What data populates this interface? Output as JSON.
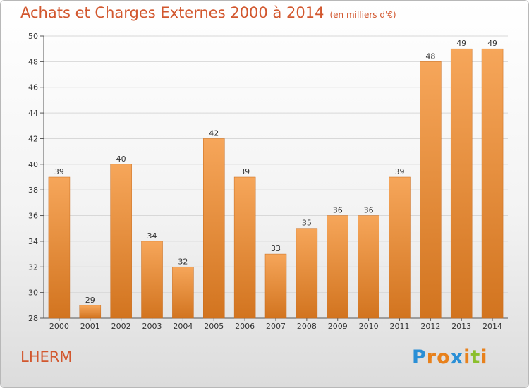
{
  "title": "Achats et Charges Externes 2000 à 2014",
  "unit": "(en milliers d'€)",
  "place": "LHERM",
  "logo": {
    "text": "Proxiti",
    "letters": [
      "P",
      "r",
      "o",
      "x",
      "i",
      "t",
      "i"
    ],
    "letter_colors": [
      "#2a8fd6",
      "#e8811c",
      "#e8811c",
      "#2a8fd6",
      "#e8811c",
      "#8bbf2c",
      "#e8811c"
    ]
  },
  "colors": {
    "bar_top": "#f6a65a",
    "bar_bottom": "#d2741f",
    "bar_edge": "#c86a1a",
    "title": "#d2572e",
    "grid": "#d8d8d8"
  },
  "chart_data": {
    "type": "bar",
    "categories": [
      "2000",
      "2001",
      "2002",
      "2003",
      "2004",
      "2005",
      "2006",
      "2007",
      "2008",
      "2009",
      "2010",
      "2011",
      "2012",
      "2013",
      "2014"
    ],
    "values": [
      39,
      29,
      40,
      34,
      32,
      42,
      39,
      33,
      35,
      36,
      36,
      39,
      48,
      49,
      49
    ],
    "value_labels": [
      "39",
      "29",
      "40",
      "34",
      "32",
      "42",
      "39",
      "33",
      "35",
      "36",
      "36",
      "39",
      "48",
      "49",
      "49"
    ],
    "ylim": [
      28,
      50
    ],
    "yticks": [
      28,
      30,
      32,
      34,
      36,
      38,
      40,
      42,
      44,
      46,
      48,
      50
    ],
    "grid": true
  }
}
